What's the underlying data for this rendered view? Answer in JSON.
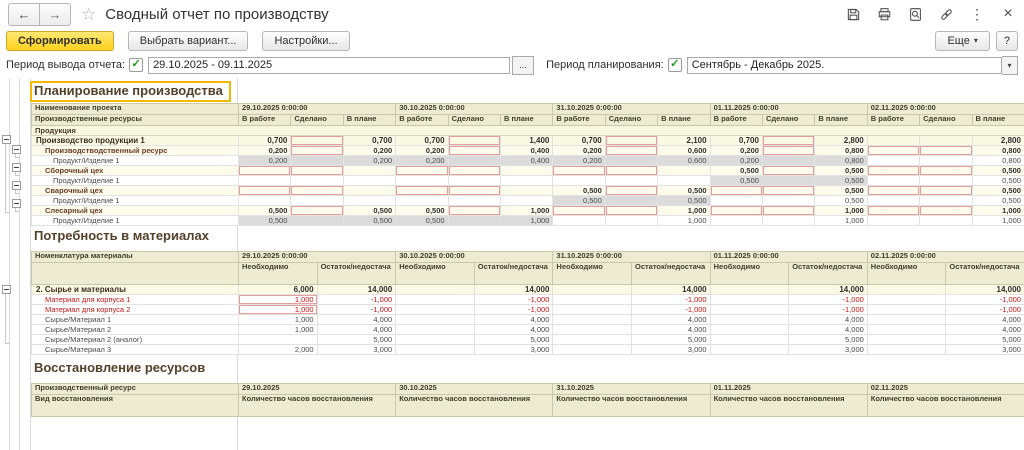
{
  "titlebar": {
    "title": "Сводный отчет по производству"
  },
  "icons": {
    "back": "←",
    "forward": "→",
    "star": "☆",
    "more_vertical": "⋮",
    "close": "×",
    "check": "✓",
    "dropdown": "▾",
    "picker": "..."
  },
  "toolbar": {
    "generate": "Сформировать",
    "choose_variant": "Выбрать вариант...",
    "settings": "Настройки...",
    "more": "Еще",
    "help": "?"
  },
  "params": {
    "output_period": {
      "label": "Период вывода отчета:",
      "checked": true,
      "value": "29.10.2025 - 09.11.2025"
    },
    "planning_period": {
      "label": "Период планирования:",
      "checked": true,
      "value": "Сентябрь - Декабрь 2025."
    }
  },
  "report": {
    "sections": [
      {
        "title": "Планирование производства",
        "selected": true,
        "corner": [
          "Наименование проекта",
          "Производственные ресурсы"
        ],
        "band_row": "Продукция",
        "dates": [
          "29.10.2025 0:00:00",
          "30.10.2025 0:00:00",
          "31.10.2025 0:00:00",
          "01.11.2025 0:00:00",
          "02.11.2025 0:00:00"
        ],
        "subcols": [
          "В работе",
          "Сделано",
          "В плане"
        ],
        "rows": [
          {
            "label": "Производство продукции 1",
            "style": "group",
            "level": 1,
            "cells": [
              "0,700",
              "|r",
              "0,700",
              "0,700",
              "|r",
              "1,400",
              "0,700",
              "|r",
              "2,100",
              "0,700",
              "|r",
              "2,800",
              "",
              "",
              "2,800"
            ]
          },
          {
            "label": "Производстводственный ресурс",
            "style": "resource",
            "level": 2,
            "cells": [
              "0,200",
              "|r",
              "0,200",
              "0,200",
              "|r",
              "0,400",
              "0,200",
              "|r",
              "0,600",
              "0,200",
              "|r",
              "0,800",
              "|r",
              "|r",
              "0,800"
            ]
          },
          {
            "label": "Продукт/Изделие 1",
            "style": "item",
            "level": 3,
            "cells": [
              "0,200|g",
              "|g",
              "0,200|g",
              "0,200|g",
              "|g",
              "0,400|g",
              "0,200|g",
              "|g",
              "0,600|g",
              "0,200|g",
              "|g",
              "0,800|g",
              "",
              "",
              "0,800"
            ]
          },
          {
            "label": "Сборочный цех",
            "style": "resource",
            "level": 2,
            "cells": [
              "|r",
              "|r",
              "",
              "|r",
              "|r",
              "",
              "|r",
              "|r",
              "",
              "0,500",
              "|r",
              "0,500",
              "|r",
              "|r",
              "0,500"
            ]
          },
          {
            "label": "Продукт/Изделие 1",
            "style": "item",
            "level": 3,
            "cells": [
              "",
              "",
              "",
              "",
              "",
              "",
              "",
              "",
              "",
              "0,500|g",
              "|g",
              "0,500|g",
              "",
              "",
              "0,500"
            ]
          },
          {
            "label": "Сварочный цех",
            "style": "resource",
            "level": 2,
            "cells": [
              "|r",
              "|r",
              "",
              "|r",
              "|r",
              "",
              "0,500",
              "|r",
              "0,500",
              "|r",
              "|r",
              "0,500",
              "|r",
              "|r",
              "0,500"
            ]
          },
          {
            "label": "Продукт/Изделие 1",
            "style": "item",
            "level": 3,
            "cells": [
              "",
              "",
              "",
              "",
              "",
              "",
              "0,500|g",
              "|g",
              "0,500|g",
              "",
              "",
              "0,500",
              "",
              "",
              "0,500"
            ]
          },
          {
            "label": "Слесарный цех",
            "style": "resource",
            "level": 2,
            "cells": [
              "0,500",
              "|r",
              "0,500",
              "0,500",
              "|r",
              "1,000",
              "|r",
              "|r",
              "1,000",
              "|r",
              "|r",
              "1,000",
              "|r",
              "|r",
              "1,000"
            ]
          },
          {
            "label": "Продукт/Изделие 1",
            "style": "item",
            "level": 3,
            "cells": [
              "0,500|g",
              "|g",
              "0,500|g",
              "0,500|g",
              "|g",
              "1,000|g",
              "",
              "",
              "1,000",
              "",
              "",
              "1,000",
              "",
              "",
              "1,000"
            ]
          }
        ]
      },
      {
        "title": "Потребность в материалах",
        "selected": false,
        "corner": [
          "Номенклатура материалы",
          ""
        ],
        "dates": [
          "29.10.2025 0:00:00",
          "30.10.2025 0:00:00",
          "31.10.2025 0:00:00",
          "01.11.2025 0:00:00",
          "02.11.2025 0:00:00"
        ],
        "subcols": [
          "Необходимо",
          "Остаток/недостача"
        ],
        "rows": [
          {
            "label": "2. Сырье и материалы",
            "style": "group",
            "level": 1,
            "cells": [
              "6,000",
              "14,000",
              "",
              "14,000",
              "",
              "14,000",
              "",
              "14,000",
              "",
              "14,000"
            ]
          },
          {
            "label": "Материал для корпуса 1",
            "style": "alert",
            "level": 2,
            "cells": [
              "1,000|r",
              "-1,000",
              "",
              "-1,000",
              "",
              "-1,000",
              "",
              "-1,000",
              "",
              "-1,000"
            ]
          },
          {
            "label": "Материал для корпуса 2",
            "style": "alert",
            "level": 2,
            "cells": [
              "1,000|r",
              "-1,000",
              "",
              "-1,000",
              "",
              "-1,000",
              "",
              "-1,000",
              "",
              "-1,000"
            ]
          },
          {
            "label": "Сырье/Материал 1",
            "style": "item",
            "level": 2,
            "cells": [
              "1,000",
              "4,000",
              "",
              "4,000",
              "",
              "4,000",
              "",
              "4,000",
              "",
              "4,000"
            ]
          },
          {
            "label": "Сырье/Материал 2",
            "style": "item",
            "level": 2,
            "cells": [
              "1,000",
              "4,000",
              "",
              "4,000",
              "",
              "4,000",
              "",
              "4,000",
              "",
              "4,000"
            ]
          },
          {
            "label": "Сырье/Материал 2 (аналог)",
            "style": "item",
            "level": 2,
            "cells": [
              "",
              "5,000",
              "",
              "5,000",
              "",
              "5,000",
              "",
              "5,000",
              "",
              "5,000"
            ]
          },
          {
            "label": "Сырье/Материал 3",
            "style": "item",
            "level": 2,
            "cells": [
              "2,000",
              "3,000",
              "",
              "3,000",
              "",
              "3,000",
              "",
              "3,000",
              "",
              "3,000"
            ]
          }
        ]
      },
      {
        "title": "Восстановление ресурсов",
        "selected": false,
        "corner": [
          "Производственный ресурс",
          "Вид восстановления"
        ],
        "dates": [
          "29.10.2025",
          "30.10.2025",
          "31.10.2025",
          "01.11.2025",
          "02.11.2025"
        ],
        "subcols": [
          "Количество часов восстановления"
        ],
        "rows": []
      }
    ]
  }
}
